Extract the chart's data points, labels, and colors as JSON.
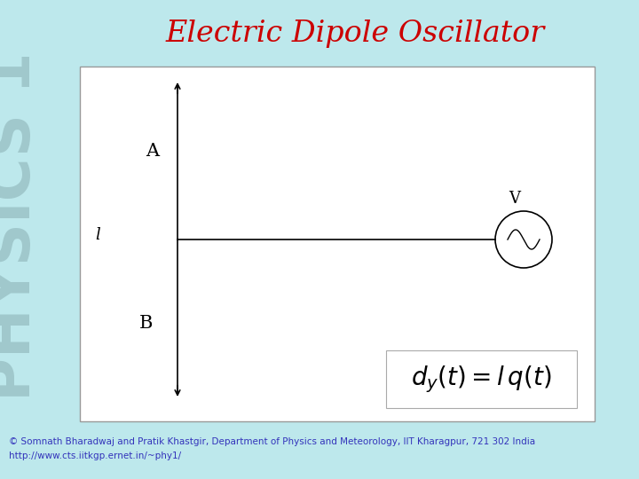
{
  "title": "Electric Dipole Oscillator",
  "title_color": "#cc0000",
  "title_fontsize": 24,
  "bg_color": "#bde8ec",
  "panel_bg": "#ffffff",
  "physics_text": "PHYSICS 1",
  "physics_color": "#a0c8cc",
  "copyright_line1": "© Somnath Bharadwaj and Pratik Khastgir, Department of Physics and Meteorology, IIT Kharagpur, 721 302 India",
  "copyright_line2": "http://www.cts.iitkgp.ernet.in/~phy1/",
  "copyright_color": "#3333bb",
  "copyright_fontsize": 7.5,
  "label_A": "A",
  "label_B": "B",
  "label_l": "l",
  "label_V": "V",
  "formula": "$d_y(t) = l\\,q(t)$"
}
